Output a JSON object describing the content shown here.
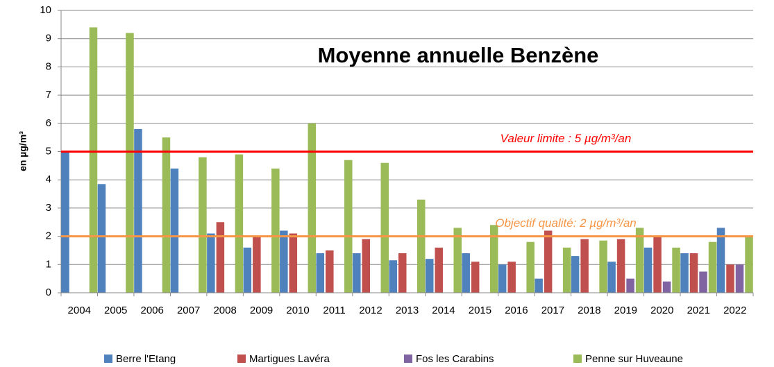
{
  "chart_data": {
    "type": "bar",
    "title": "Moyenne annuelle Benzène",
    "y_label": "en µg/m³",
    "categories": [
      "2004",
      "2005",
      "2006",
      "2007",
      "2008",
      "2009",
      "2010",
      "2011",
      "2012",
      "2013",
      "2014",
      "2015",
      "2016",
      "2017",
      "2018",
      "2019",
      "2020",
      "2021",
      "2022"
    ],
    "series": [
      {
        "name": "Berre l'Etang",
        "color": "#4f81bd",
        "values": [
          5.0,
          3.85,
          5.8,
          4.4,
          2.1,
          1.6,
          2.2,
          1.4,
          1.4,
          1.15,
          1.2,
          1.4,
          1.0,
          0.5,
          1.3,
          1.1,
          1.6,
          1.4,
          2.3
        ]
      },
      {
        "name": "Martigues Lavéra",
        "color": "#c0504d",
        "values": [
          null,
          null,
          null,
          null,
          2.5,
          2.0,
          2.1,
          1.5,
          1.9,
          1.4,
          1.6,
          1.1,
          1.1,
          2.2,
          1.9,
          1.9,
          2.0,
          1.4,
          1.0
        ]
      },
      {
        "name": "Fos les Carabins",
        "color": "#8064a2",
        "values": [
          null,
          null,
          null,
          null,
          null,
          null,
          null,
          null,
          null,
          null,
          null,
          null,
          null,
          null,
          null,
          0.5,
          0.4,
          0.75,
          1.0
        ]
      },
      {
        "name": "Penne sur Huveaune",
        "color": "#9bbb59",
        "values": [
          9.4,
          9.2,
          5.5,
          4.8,
          4.9,
          4.4,
          6.0,
          4.7,
          4.6,
          3.3,
          2.3,
          2.4,
          1.8,
          1.6,
          1.85,
          2.3,
          1.6,
          1.8,
          2.0
        ]
      }
    ],
    "reference_lines": [
      {
        "value": 5,
        "label": "Valeur limite : 5 µg/m³/an",
        "color": "#ff0000"
      },
      {
        "value": 2,
        "label": "Objectif qualité: 2 µg/m³/an",
        "color": "#f79646"
      }
    ],
    "ylim": [
      0,
      10
    ],
    "yticks": [
      0,
      1,
      2,
      3,
      4,
      5,
      6,
      7,
      8,
      9,
      10
    ],
    "grid": true,
    "legend": "bottom"
  }
}
